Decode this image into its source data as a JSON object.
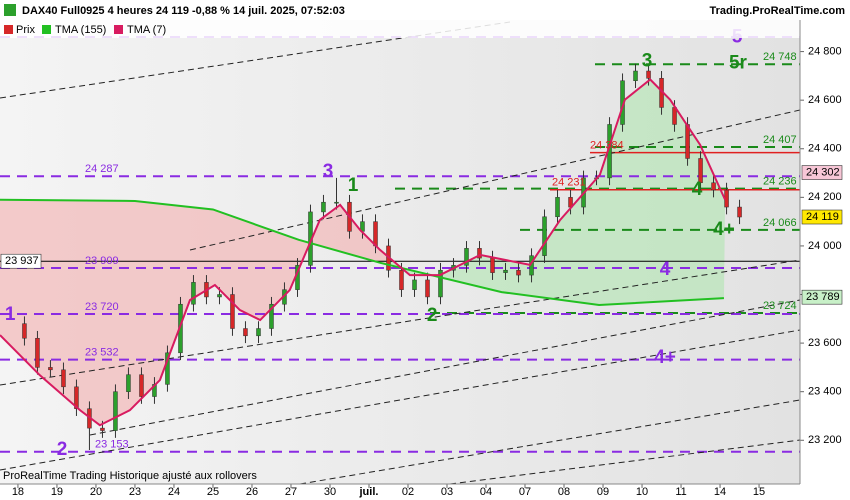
{
  "chart_data": {
    "type": "candlestick",
    "title": "DAX40 Full0925 4 heures 24 119 -0,88 % 14 juil. 2025, 07:52:03",
    "source": "Trading.ProRealTime.com",
    "footer": "ProRealTime Trading  Historique ajusté aux rollovers",
    "price_name": "Prix",
    "up_color": "#2ca02c",
    "down_color": "#d62728",
    "xlim": [
      -0.46,
      20.05
    ],
    "xticks": [
      {
        "value": 0,
        "label": "18"
      },
      {
        "value": 1,
        "label": "19"
      },
      {
        "value": 2,
        "label": "20"
      },
      {
        "value": 3,
        "label": "23"
      },
      {
        "value": 4,
        "label": "24"
      },
      {
        "value": 5,
        "label": "25"
      },
      {
        "value": 6,
        "label": "26"
      },
      {
        "value": 7,
        "label": "27"
      },
      {
        "value": 8,
        "label": "30"
      },
      {
        "value": 9,
        "label": "juil."
      },
      {
        "value": 10,
        "label": "02"
      },
      {
        "value": 11,
        "label": "03"
      },
      {
        "value": 12,
        "label": "04"
      },
      {
        "value": 13,
        "label": "07"
      },
      {
        "value": 14,
        "label": "08"
      },
      {
        "value": 15,
        "label": "09"
      },
      {
        "value": 16,
        "label": "10"
      },
      {
        "value": 17,
        "label": "11"
      },
      {
        "value": 18,
        "label": "14"
      },
      {
        "value": 19,
        "label": "15"
      }
    ],
    "ylim": [
      23020,
      24930
    ],
    "yticks": [
      {
        "value": 23200,
        "label": "23 200"
      },
      {
        "value": 23400,
        "label": "23 400"
      },
      {
        "value": 23600,
        "label": "23 600"
      },
      {
        "value": 23800,
        "label": "23 800"
      },
      {
        "value": 24000,
        "label": "24 000"
      },
      {
        "value": 24200,
        "label": "24 200"
      },
      {
        "value": 24400,
        "label": "24 400"
      },
      {
        "value": 24600,
        "label": "24 600"
      },
      {
        "value": 24800,
        "label": "24 800"
      }
    ],
    "x": [
      0.167,
      0.5,
      0.833,
      1.167,
      1.5,
      1.833,
      2.167,
      2.5,
      2.833,
      3.167,
      3.5,
      3.833,
      4.167,
      4.5,
      4.833,
      5.167,
      5.5,
      5.833,
      6.167,
      6.5,
      6.833,
      7.167,
      7.5,
      7.833,
      8.167,
      8.5,
      8.833,
      9.167,
      9.5,
      9.833,
      10.167,
      10.5,
      10.833,
      11.167,
      11.5,
      11.833,
      12.167,
      12.5,
      12.833,
      13.167,
      13.5,
      13.833,
      14.167,
      14.5,
      14.833,
      15.167,
      15.5,
      15.833,
      16.167,
      16.5,
      16.833,
      17.167,
      17.5,
      17.833,
      18.167,
      18.5
    ],
    "open": [
      23680,
      23620,
      23500,
      23490,
      23420,
      23330,
      23250,
      23240,
      23400,
      23470,
      23380,
      23430,
      23560,
      23760,
      23850,
      23790,
      23800,
      23660,
      23630,
      23660,
      23760,
      23820,
      23920,
      24140,
      24180,
      24180,
      24060,
      24100,
      24000,
      23900,
      23820,
      23860,
      23790,
      23900,
      23920,
      23990,
      23950,
      23890,
      23900,
      23880,
      23960,
      24120,
      24200,
      24160,
      24280,
      24280,
      24500,
      24680,
      24720,
      24690,
      24570,
      24500,
      24360,
      24260,
      24230,
      24160
    ],
    "high": [
      23710,
      23650,
      23530,
      23520,
      23450,
      23360,
      23280,
      23430,
      23500,
      23500,
      23460,
      23590,
      23790,
      23880,
      23880,
      23830,
      23830,
      23690,
      23690,
      23790,
      23850,
      23950,
      24170,
      24210,
      24280,
      24210,
      24130,
      24130,
      24030,
      23930,
      23890,
      23890,
      23930,
      23950,
      24020,
      24020,
      23980,
      23930,
      23930,
      23990,
      24150,
      24230,
      24230,
      24310,
      24310,
      24530,
      24710,
      24750,
      24750,
      24720,
      24600,
      24530,
      24390,
      24290,
      24260,
      24190
    ],
    "low": [
      23590,
      23470,
      23460,
      23390,
      23300,
      23160,
      23210,
      23210,
      23370,
      23350,
      23350,
      23400,
      23530,
      23730,
      23760,
      23760,
      23630,
      23600,
      23600,
      23630,
      23730,
      23790,
      23890,
      24110,
      24150,
      24030,
      24030,
      23970,
      23870,
      23790,
      23790,
      23760,
      23760,
      23870,
      23890,
      23920,
      23860,
      23860,
      23850,
      23850,
      23930,
      24090,
      24130,
      24130,
      24250,
      24250,
      24470,
      24650,
      24660,
      24540,
      24470,
      24330,
      24230,
      24200,
      24130,
      24090
    ],
    "close": [
      23620,
      23500,
      23490,
      23420,
      23330,
      23250,
      23240,
      23400,
      23470,
      23380,
      23430,
      23560,
      23760,
      23850,
      23790,
      23800,
      23660,
      23630,
      23660,
      23760,
      23820,
      23920,
      24140,
      24180,
      24180,
      24060,
      24100,
      24000,
      23900,
      23820,
      23860,
      23790,
      23900,
      23920,
      23990,
      23950,
      23890,
      23900,
      23880,
      23960,
      24120,
      24200,
      24160,
      24280,
      24280,
      24500,
      24680,
      24720,
      24690,
      24570,
      24500,
      24360,
      24260,
      24230,
      24160,
      24119
    ],
    "series": [
      {
        "name": "TMA (155)",
        "color": "#22c022",
        "x": [
          -0.46,
          3,
          5,
          7.2,
          9.3,
          12.4,
          14.9,
          18.1
        ],
        "values": [
          24190,
          24185,
          24150,
          24025,
          23930,
          23810,
          23757,
          23785
        ]
      },
      {
        "name": "TMA (7)",
        "color": "#d81b60",
        "x": [
          -0.46,
          0.56,
          1.59,
          2.1,
          2.87,
          3.64,
          4.41,
          5.05,
          5.69,
          6.21,
          6.97,
          7.74,
          8.26,
          8.77,
          9.28,
          10.05,
          10.82,
          11.85,
          13.13,
          13.9,
          14.92,
          15.56,
          16.21,
          16.72,
          17.49,
          18.13
        ],
        "values": [
          23633,
          23468,
          23324,
          23262,
          23324,
          23448,
          23777,
          23839,
          23736,
          23695,
          23819,
          24107,
          24169,
          24066,
          23984,
          23880,
          23880,
          23963,
          23922,
          24107,
          24293,
          24602,
          24685,
          24602,
          24416,
          24190
        ]
      }
    ],
    "levels": [
      {
        "value": 24860,
        "color": "#8a2be2",
        "style": "dash"
      },
      {
        "value": 24748,
        "label": "24 748",
        "color": "#1a8a1a",
        "style": "dash"
      },
      {
        "value": 24407,
        "label": "24 407",
        "color": "#1a8a1a",
        "style": "dash"
      },
      {
        "value": 24384,
        "label": "24 384",
        "color": "#e02020",
        "style": "solid"
      },
      {
        "value": 24287,
        "label": "24 287",
        "color": "#8a2be2",
        "style": "dash"
      },
      {
        "value": 24236,
        "label": "24 236",
        "color": "#1a8a1a",
        "style": "dash"
      },
      {
        "value": 24231,
        "label": "24 231",
        "color": "#e02020",
        "style": "solid"
      },
      {
        "value": 24066,
        "label": "24 066",
        "color": "#1a8a1a",
        "style": "dash"
      },
      {
        "value": 23937,
        "color": "#000000",
        "style": "solid"
      },
      {
        "value": 23909,
        "label": "23 909",
        "color": "#8a2be2",
        "style": "dash"
      },
      {
        "value": 23724,
        "label": "23 724",
        "color": "#1a8a1a",
        "style": "dash"
      },
      {
        "value": 23720,
        "label": "23 720",
        "color": "#8a2be2",
        "style": "dash"
      },
      {
        "value": 23532,
        "label": "23 532",
        "color": "#8a2be2",
        "style": "dash"
      },
      {
        "value": 23153,
        "label": "23 153",
        "color": "#8a2be2",
        "style": "dash"
      }
    ],
    "markers": [
      {
        "value": 24302,
        "label": "24 302",
        "color": "#f7c6d6",
        "side": "right"
      },
      {
        "value": 24119,
        "label": "24 119",
        "color": "#ffe800",
        "side": "right"
      },
      {
        "value": 23789,
        "label": "23 789",
        "color": "#c8f0c8",
        "side": "right"
      },
      {
        "value": 23937,
        "label": "23 937",
        "color": "#ffffff",
        "side": "left"
      }
    ],
    "annotations": [
      {
        "text": "1",
        "x": -0.2,
        "y": 23715,
        "color": "#8a2be2"
      },
      {
        "text": "2",
        "x": 1.13,
        "y": 23159,
        "color": "#8a2be2"
      },
      {
        "text": "3",
        "x": 7.95,
        "y": 24305,
        "color": "#8a2be2"
      },
      {
        "text": "1",
        "x": 8.59,
        "y": 24247,
        "color": "#1a8a1a"
      },
      {
        "text": "2",
        "x": 10.62,
        "y": 23711,
        "color": "#1a8a1a"
      },
      {
        "text": "3",
        "x": 16.13,
        "y": 24759,
        "color": "#1a8a1a"
      },
      {
        "text": "4",
        "x": 17.41,
        "y": 24231,
        "color": "#1a8a1a"
      },
      {
        "text": "4+",
        "x": 18.1,
        "y": 24066,
        "color": "#1a8a1a"
      },
      {
        "text": "5",
        "x": 18.44,
        "y": 24858,
        "color": "#8a2be2"
      },
      {
        "text": "5r",
        "x": 18.46,
        "y": 24750,
        "color": "#1a8a1a"
      },
      {
        "text": "4",
        "x": 16.59,
        "y": 23901,
        "color": "#8a2be2"
      },
      {
        "text": "4+",
        "x": 16.59,
        "y": 23538,
        "color": "#8a2be2"
      }
    ]
  }
}
